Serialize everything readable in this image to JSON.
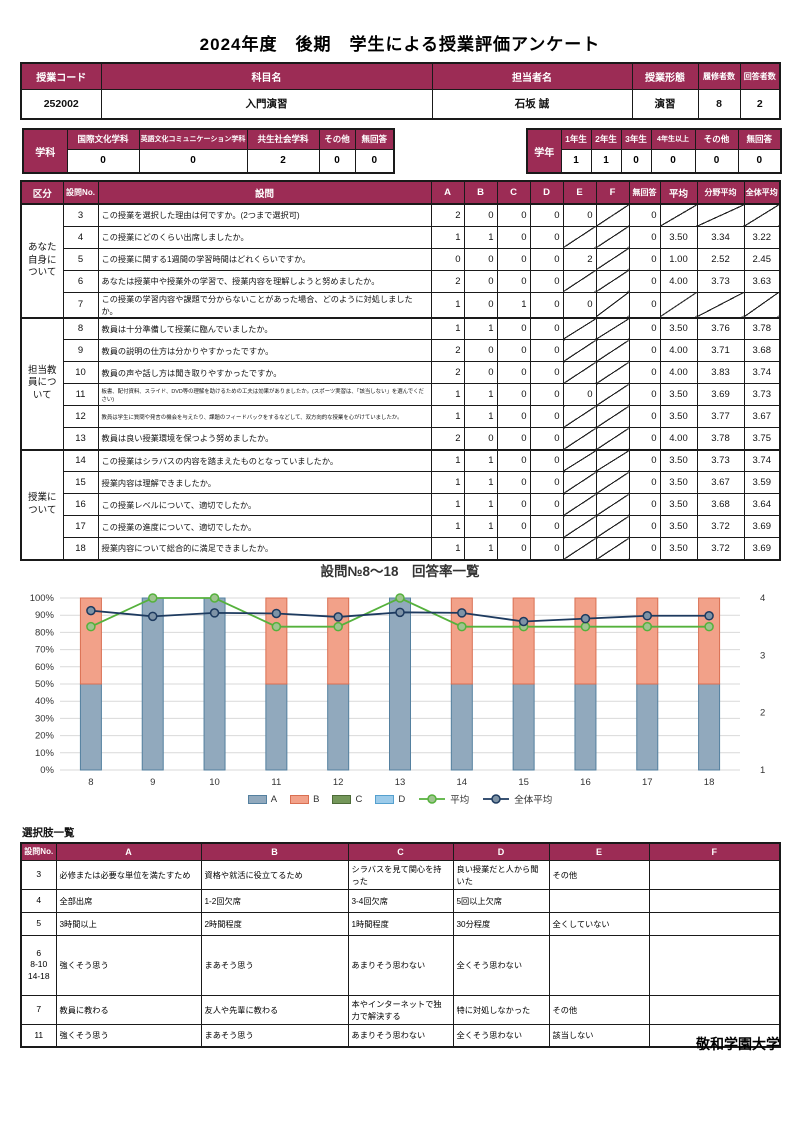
{
  "title": "2024年度　後期　学生による授業評価アンケート",
  "course_table": {
    "headers": [
      "授業コード",
      "科目名",
      "担当者名",
      "授業形態",
      "履修者数",
      "回答者数"
    ],
    "values": [
      "252002",
      "入門演習",
      "石坂 誠",
      "演習",
      "8",
      "2"
    ]
  },
  "department_table": {
    "label": "学科",
    "headers": [
      "国際文化学科",
      "英語文化コミュニケーション学科",
      "共生社会学科",
      "その他",
      "無回答"
    ],
    "values": [
      "0",
      "0",
      "2",
      "0",
      "0"
    ]
  },
  "year_table": {
    "label": "学年",
    "headers": [
      "1年生",
      "2年生",
      "3年生",
      "4年生以上",
      "その他",
      "無回答"
    ],
    "values": [
      "1",
      "1",
      "0",
      "0",
      "0",
      "0"
    ]
  },
  "main_table": {
    "headers": [
      "区分",
      "設問No.",
      "設問",
      "A",
      "B",
      "C",
      "D",
      "E",
      "F",
      "無回答",
      "平均",
      "分野平均",
      "全体平均"
    ],
    "groups": [
      {
        "label": "あなた自身について",
        "rows": [
          {
            "no": "3",
            "question": "この授業を選択した理由は何ですか。(2つまで選択可)",
            "values": [
              "2",
              "0",
              "0",
              "0",
              "0",
              null,
              "0",
              null,
              null,
              null
            ]
          },
          {
            "no": "4",
            "question": "この授業にどのくらい出席しましたか。",
            "values": [
              "1",
              "1",
              "0",
              "0",
              null,
              null,
              "0",
              "3.50",
              "3.34",
              "3.22"
            ]
          },
          {
            "no": "5",
            "question": "この授業に関する1週間の学習時間はどれくらいですか。",
            "values": [
              "0",
              "0",
              "0",
              "0",
              "2",
              null,
              "0",
              "1.00",
              "2.52",
              "2.45"
            ]
          },
          {
            "no": "6",
            "question": "あなたは授業中や授業外の学習で、授業内容を理解しようと努めましたか。",
            "values": [
              "2",
              "0",
              "0",
              "0",
              null,
              null,
              "0",
              "4.00",
              "3.73",
              "3.63"
            ]
          },
          {
            "no": "7",
            "question": "この授業の学習内容や課題で分からないことがあった場合、どのように対処しましたか。",
            "values": [
              "1",
              "0",
              "1",
              "0",
              "0",
              null,
              "0",
              null,
              null,
              null
            ]
          }
        ]
      },
      {
        "label": "担当教員について",
        "rows": [
          {
            "no": "8",
            "question": "教員は十分準備して授業に臨んでいましたか。",
            "values": [
              "1",
              "1",
              "0",
              "0",
              null,
              null,
              "0",
              "3.50",
              "3.76",
              "3.78"
            ]
          },
          {
            "no": "9",
            "question": "教員の説明の仕方は分かりやすかったですか。",
            "values": [
              "2",
              "0",
              "0",
              "0",
              null,
              null,
              "0",
              "4.00",
              "3.71",
              "3.68"
            ]
          },
          {
            "no": "10",
            "question": "教員の声や話し方は聞き取りやすかったですか。",
            "values": [
              "2",
              "0",
              "0",
              "0",
              null,
              null,
              "0",
              "4.00",
              "3.83",
              "3.74"
            ]
          },
          {
            "no": "11",
            "question": "板書、配付資料、スライド、DVD等の理解を助けるための工夫は効果がありましたか。(スポーツ実習は、「該当しない」を選んでください)",
            "values": [
              "1",
              "1",
              "0",
              "0",
              "0",
              null,
              "0",
              "3.50",
              "3.69",
              "3.73"
            ]
          },
          {
            "no": "12",
            "question": "教員は学生に質問や発言の機会を与えたり、課題のフィードバックをするなどして、双方向的な授業を心がけていましたか。",
            "values": [
              "1",
              "1",
              "0",
              "0",
              null,
              null,
              "0",
              "3.50",
              "3.77",
              "3.67"
            ]
          },
          {
            "no": "13",
            "question": "教員は良い授業環境を保つよう努めましたか。",
            "values": [
              "2",
              "0",
              "0",
              "0",
              null,
              null,
              "0",
              "4.00",
              "3.78",
              "3.75"
            ]
          }
        ]
      },
      {
        "label": "授業について",
        "rows": [
          {
            "no": "14",
            "question": "この授業はシラバスの内容を踏まえたものとなっていましたか。",
            "values": [
              "1",
              "1",
              "0",
              "0",
              null,
              null,
              "0",
              "3.50",
              "3.73",
              "3.74"
            ]
          },
          {
            "no": "15",
            "question": "授業内容は理解できましたか。",
            "values": [
              "1",
              "1",
              "0",
              "0",
              null,
              null,
              "0",
              "3.50",
              "3.67",
              "3.59"
            ]
          },
          {
            "no": "16",
            "question": "この授業レベルについて、適切でしたか。",
            "values": [
              "1",
              "1",
              "0",
              "0",
              null,
              null,
              "0",
              "3.50",
              "3.68",
              "3.64"
            ]
          },
          {
            "no": "17",
            "question": "この授業の進度について、適切でしたか。",
            "values": [
              "1",
              "1",
              "0",
              "0",
              null,
              null,
              "0",
              "3.50",
              "3.72",
              "3.69"
            ]
          },
          {
            "no": "18",
            "question": "授業内容について総合的に満足できましたか。",
            "values": [
              "1",
              "1",
              "0",
              "0",
              null,
              null,
              "0",
              "3.50",
              "3.72",
              "3.69"
            ]
          }
        ]
      }
    ]
  },
  "chart_data": {
    "type": "bar",
    "subtype": "stacked-bar-with-lines",
    "title": "設問№8～18　回答率一覧",
    "categories": [
      "8",
      "9",
      "10",
      "11",
      "12",
      "13",
      "14",
      "15",
      "16",
      "17",
      "18"
    ],
    "series": [
      {
        "name": "A",
        "type": "bar",
        "unit": "%",
        "values": [
          50,
          100,
          100,
          50,
          50,
          100,
          50,
          50,
          50,
          50,
          50
        ]
      },
      {
        "name": "B",
        "type": "bar",
        "unit": "%",
        "values": [
          50,
          0,
          0,
          50,
          50,
          0,
          50,
          50,
          50,
          50,
          50
        ]
      },
      {
        "name": "C",
        "type": "bar",
        "unit": "%",
        "values": [
          0,
          0,
          0,
          0,
          0,
          0,
          0,
          0,
          0,
          0,
          0
        ]
      },
      {
        "name": "D",
        "type": "bar",
        "unit": "%",
        "values": [
          0,
          0,
          0,
          0,
          0,
          0,
          0,
          0,
          0,
          0,
          0
        ]
      },
      {
        "name": "平均",
        "type": "line",
        "axis": "right",
        "values": [
          3.5,
          4,
          4,
          3.5,
          3.5,
          4,
          3.5,
          3.5,
          3.5,
          3.5,
          3.5
        ]
      },
      {
        "name": "全体平均",
        "type": "line",
        "axis": "right",
        "values": [
          3.78,
          3.68,
          3.74,
          3.73,
          3.67,
          3.75,
          3.74,
          3.59,
          3.64,
          3.69,
          3.69
        ]
      }
    ],
    "left_axis": {
      "min": 0,
      "max": 100,
      "step": 10,
      "tick_format": "percent"
    },
    "right_axis": {
      "min": 1,
      "max": 4,
      "step": 1
    },
    "grid": true,
    "legend_position": "bottom"
  },
  "options_table": {
    "title": "選択肢一覧",
    "headers": [
      "設問No.",
      "A",
      "B",
      "C",
      "D",
      "E",
      "F"
    ],
    "rows": [
      {
        "no": "3",
        "tall": false,
        "options": [
          "必修または必要な単位を満たすため",
          "資格や就活に役立てるため",
          "シラバスを見て関心を持った",
          "良い授業だと人から聞いた",
          "その他",
          ""
        ]
      },
      {
        "no": "4",
        "tall": false,
        "options": [
          "全部出席",
          "1-2回欠席",
          "3-4回欠席",
          "5回以上欠席",
          "",
          ""
        ]
      },
      {
        "no": "5",
        "tall": false,
        "options": [
          "3時間以上",
          "2時間程度",
          "1時間程度",
          "30分程度",
          "全くしていない",
          ""
        ]
      },
      {
        "no": "6\n8-10\n14-18",
        "tall": true,
        "options": [
          "強くそう思う",
          "まあそう思う",
          "あまりそう思わない",
          "全くそう思わない",
          "",
          ""
        ]
      },
      {
        "no": "7",
        "tall": false,
        "options": [
          "教員に教わる",
          "友人や先輩に教わる",
          "本やインターネットで独力で解決する",
          "特に対処しなかった",
          "その他",
          ""
        ]
      },
      {
        "no": "11",
        "tall": false,
        "options": [
          "強くそう思う",
          "まあそう思う",
          "あまりそう思わない",
          "全くそう思わない",
          "該当しない",
          ""
        ]
      }
    ]
  },
  "footer": "敬和学園大学",
  "colors": {
    "maroon": "#9C2C55",
    "border": "#1A1A1A",
    "bar_a_fill": "#91A9BD",
    "bar_a_stroke": "#54809F",
    "bar_b_fill": "#F2A189",
    "bar_b_stroke": "#D96F52",
    "bar_c_fill": "#74975A",
    "bar_c_stroke": "#4D6B38",
    "bar_d_fill": "#9CCBEA",
    "bar_d_stroke": "#55A0CE",
    "line_avg": "#55B13C",
    "line_avg_marker": "#9FC490",
    "line_overall": "#1D3A5F",
    "line_overall_marker": "#7E93A6",
    "grid": "#D9D9D9"
  }
}
